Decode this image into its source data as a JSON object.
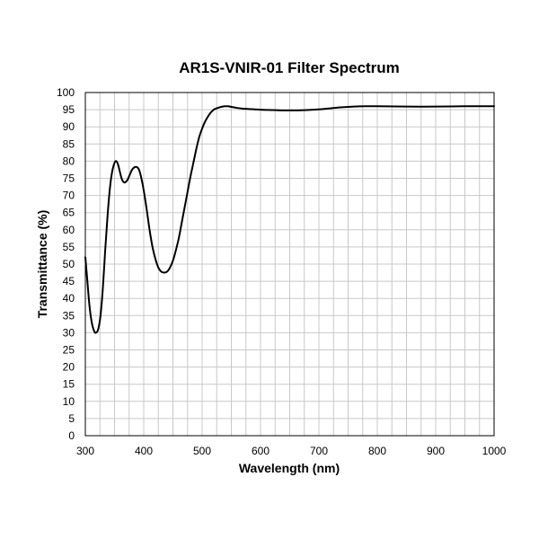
{
  "chart_data": {
    "type": "line",
    "title": "AR1S-VNIR-01 Filter Spectrum",
    "xlabel": "Wavelength (nm)",
    "ylabel": "Transmittance (%)",
    "xlim": [
      300,
      1000
    ],
    "ylim": [
      0,
      100
    ],
    "x_ticks": [
      300,
      400,
      500,
      600,
      700,
      800,
      900,
      1000
    ],
    "y_ticks": [
      0,
      5,
      10,
      15,
      20,
      25,
      30,
      35,
      40,
      45,
      50,
      55,
      60,
      65,
      70,
      75,
      80,
      85,
      90,
      95,
      100
    ],
    "x_minor_step": 25,
    "grid": true,
    "legend": "none",
    "line_color": "#000000",
    "series": [
      {
        "x": [
          300,
          303,
          307,
          311,
          315,
          318,
          322,
          326,
          330,
          334,
          338,
          342,
          346,
          350,
          353,
          356,
          359,
          362,
          365,
          368,
          372,
          376,
          380,
          384,
          388,
          392,
          396,
          400,
          405,
          410,
          415,
          420,
          425,
          430,
          435,
          440,
          445,
          450,
          455,
          460,
          465,
          470,
          475,
          480,
          485,
          490,
          495,
          500,
          505,
          510,
          515,
          520,
          525,
          530,
          535,
          540,
          545,
          550,
          560,
          570,
          580,
          600,
          620,
          640,
          660,
          680,
          700,
          720,
          740,
          760,
          780,
          800,
          850,
          900,
          950,
          1000
        ],
        "y": [
          52,
          46,
          38,
          33,
          30.5,
          30,
          31,
          35,
          43,
          54,
          64,
          72,
          77,
          79.5,
          80,
          79,
          77,
          75,
          74,
          73.8,
          74.5,
          76,
          77.5,
          78.2,
          78.3,
          77.5,
          75,
          71.5,
          66,
          60,
          55,
          51.5,
          49,
          47.8,
          47.5,
          47.8,
          49,
          51,
          54,
          57.5,
          62,
          66.5,
          71,
          75.5,
          79.5,
          83.5,
          87,
          89.5,
          91.5,
          93,
          94.2,
          95,
          95.4,
          95.7,
          95.9,
          96,
          96,
          95.8,
          95.5,
          95.3,
          95.2,
          95,
          94.9,
          94.8,
          94.8,
          94.9,
          95.1,
          95.4,
          95.7,
          95.9,
          96,
          96,
          95.9,
          95.9,
          96,
          96
        ]
      }
    ]
  }
}
